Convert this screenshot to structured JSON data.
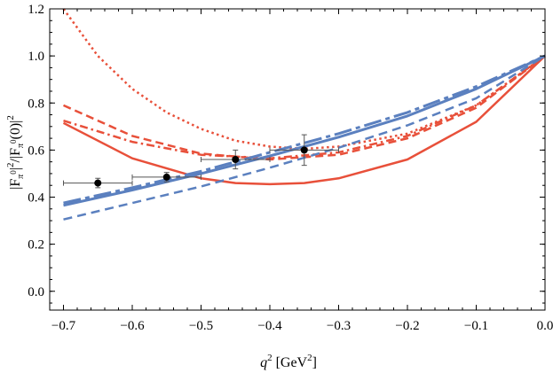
{
  "chart_data": {
    "type": "line",
    "xlabel_main": "q",
    "xlabel_sup": "2",
    "xlabel_unit_open": " [GeV",
    "xlabel_unit_sup": "2",
    "xlabel_unit_close": "]",
    "ylabel_parts": [
      "|F",
      "π",
      "0",
      "|",
      "2",
      "/|F",
      "π",
      "0",
      "(0)|",
      "2"
    ],
    "xlim": [
      -0.72,
      0.0
    ],
    "ylim": [
      -0.08,
      1.2
    ],
    "xticks": [
      -0.7,
      -0.6,
      -0.5,
      -0.4,
      -0.3,
      -0.2,
      -0.1,
      0.0
    ],
    "xtick_labels": [
      "−0.7",
      "−0.6",
      "−0.5",
      "−0.4",
      "−0.3",
      "−0.2",
      "−0.1",
      "0.0"
    ],
    "yticks": [
      0.0,
      0.2,
      0.4,
      0.6,
      0.8,
      1.0,
      1.2
    ],
    "ytick_labels": [
      "0.0",
      "0.2",
      "0.4",
      "0.6",
      "0.8",
      "1.0",
      "1.2"
    ],
    "grid": false,
    "colors": {
      "red": "#e8503a",
      "blue": "#5b80bf",
      "data": "#000000",
      "errorbar": "#555555"
    },
    "series": [
      {
        "style": "red-solid",
        "x": [
          -0.7,
          -0.6,
          -0.5,
          -0.45,
          -0.4,
          -0.35,
          -0.3,
          -0.2,
          -0.1,
          0.0
        ],
        "y": [
          0.715,
          0.565,
          0.48,
          0.46,
          0.455,
          0.46,
          0.48,
          0.56,
          0.72,
          1.0
        ]
      },
      {
        "style": "red-dashed",
        "x": [
          -0.7,
          -0.6,
          -0.5,
          -0.4,
          -0.3,
          -0.2,
          -0.1,
          0.0
        ],
        "y": [
          0.79,
          0.66,
          0.585,
          0.56,
          0.58,
          0.65,
          0.78,
          1.0
        ]
      },
      {
        "style": "red-dashdot",
        "x": [
          -0.7,
          -0.6,
          -0.5,
          -0.4,
          -0.3,
          -0.2,
          -0.1,
          0.0
        ],
        "y": [
          0.725,
          0.635,
          0.58,
          0.565,
          0.59,
          0.66,
          0.79,
          1.0
        ]
      },
      {
        "style": "red-dotted",
        "x": [
          -0.7,
          -0.65,
          -0.6,
          -0.55,
          -0.5,
          -0.45,
          -0.4,
          -0.35,
          -0.3,
          -0.2,
          -0.1,
          0.0
        ],
        "y": [
          1.2,
          1.0,
          0.86,
          0.76,
          0.69,
          0.64,
          0.615,
          0.605,
          0.615,
          0.67,
          0.79,
          1.0
        ]
      },
      {
        "style": "blue-solid",
        "x": [
          -0.7,
          -0.6,
          -0.5,
          -0.4,
          -0.3,
          -0.2,
          -0.1,
          0.0
        ],
        "y": [
          0.365,
          0.43,
          0.5,
          0.575,
          0.655,
          0.745,
          0.86,
          1.0
        ]
      },
      {
        "style": "blue-longdash",
        "x": [
          -0.7,
          -0.6,
          -0.5,
          -0.4,
          -0.3,
          -0.2,
          -0.1,
          0.0
        ],
        "y": [
          0.375,
          0.44,
          0.51,
          0.59,
          0.67,
          0.76,
          0.87,
          1.0
        ]
      },
      {
        "style": "blue-dashed",
        "x": [
          -0.7,
          -0.6,
          -0.5,
          -0.4,
          -0.3,
          -0.2,
          -0.1,
          0.0
        ],
        "y": [
          0.305,
          0.375,
          0.445,
          0.525,
          0.61,
          0.705,
          0.82,
          1.0
        ]
      }
    ],
    "points": [
      {
        "x": -0.65,
        "y": 0.46,
        "xerr": 0.05,
        "yerr": 0.02
      },
      {
        "x": -0.55,
        "y": 0.485,
        "xerr": 0.05,
        "yerr": 0.02
      },
      {
        "x": -0.45,
        "y": 0.56,
        "xerr": 0.05,
        "yerr": 0.04
      },
      {
        "x": -0.35,
        "y": 0.6,
        "xerr": 0.05,
        "yerr": 0.065
      }
    ]
  }
}
